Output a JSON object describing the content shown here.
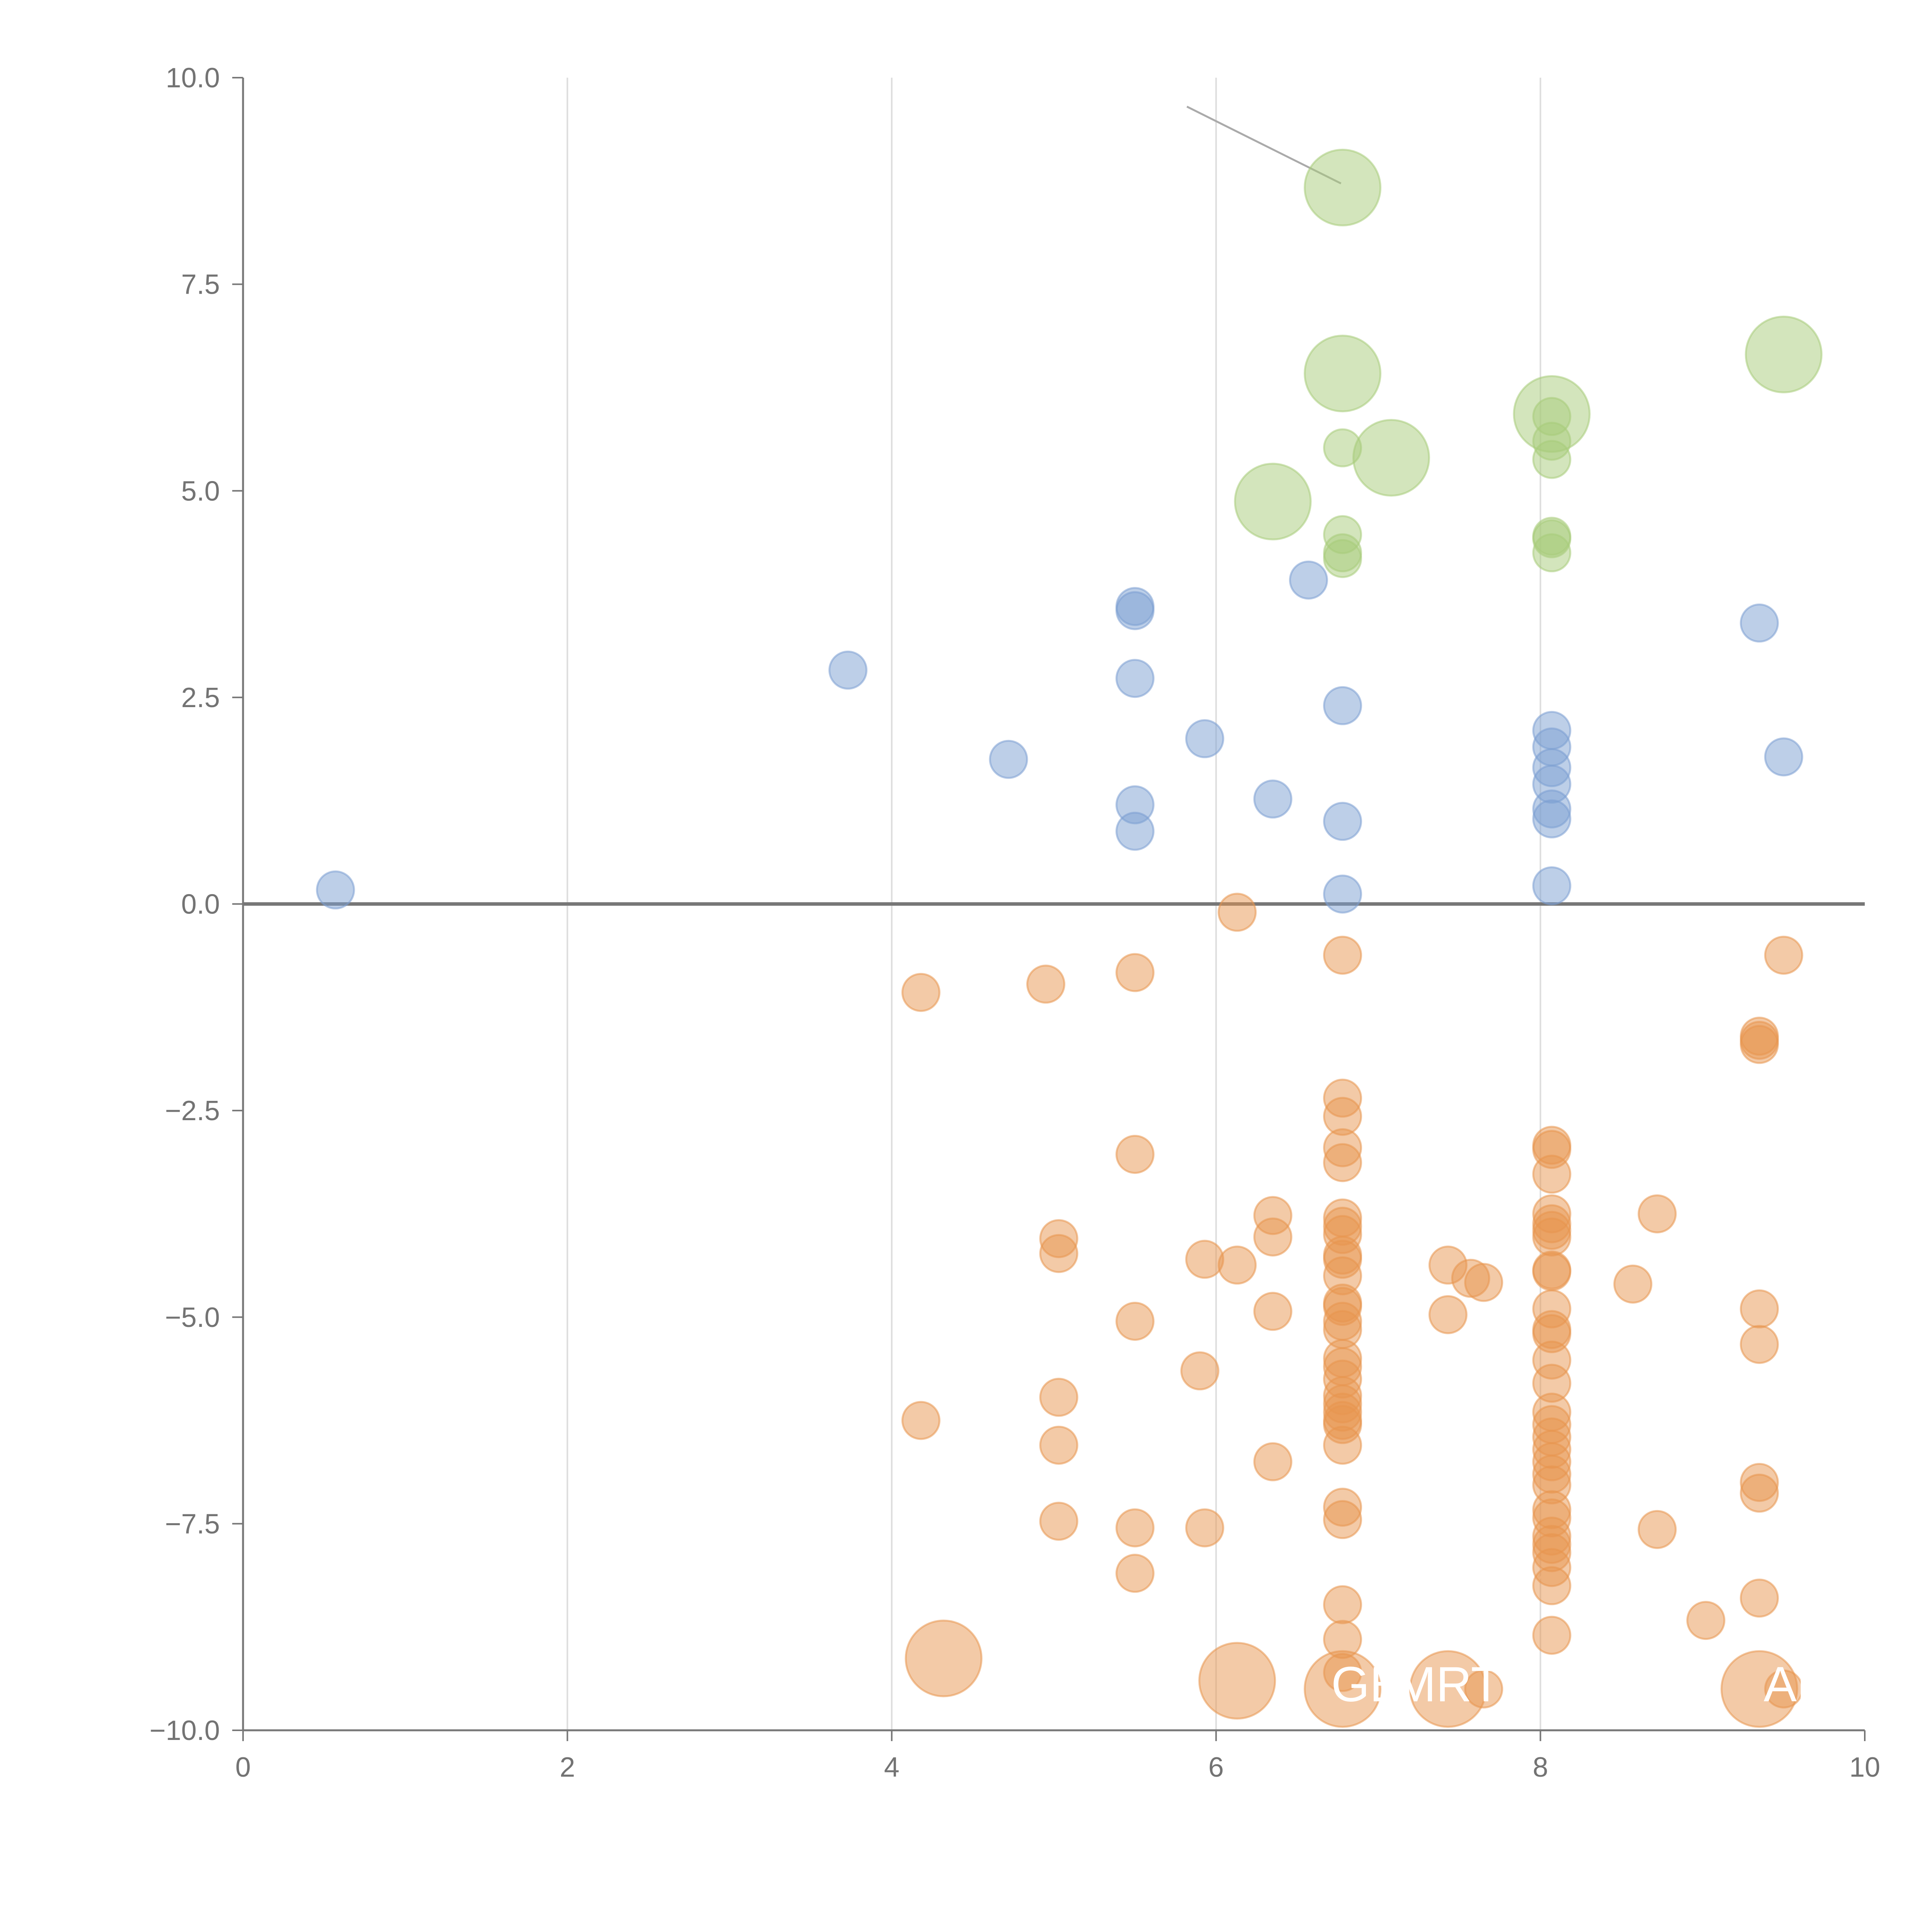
{
  "chart_data": {
    "type": "scatter",
    "title": "",
    "xlabel": "",
    "ylabel": "",
    "xlim": [
      0,
      10
    ],
    "ylim": [
      -10,
      10
    ],
    "grid": "vertical",
    "x_ticks": [
      "0",
      "2",
      "4",
      "6",
      "8",
      "10"
    ],
    "y_ticks": [
      "−10.0",
      "−7.5",
      "−5.0",
      "−2.5",
      "0.0",
      "2.5",
      "5.0",
      "7.5",
      "10.0"
    ],
    "baseline": 0,
    "colors": {
      "blue": "#7b9fd1",
      "orange": "#e8954f",
      "green": "#a8cc7a",
      "grid": "#dddddd",
      "axis": "#777777",
      "zero_line": "#777777",
      "leader": "#aaaaaa"
    },
    "series": [
      {
        "name": "blue",
        "points": [
          {
            "x": 0.57,
            "y": 0.17,
            "size": 1
          },
          {
            "x": 3.73,
            "y": 2.83,
            "size": 1
          },
          {
            "x": 4.72,
            "y": 1.75,
            "size": 1
          },
          {
            "x": 5.5,
            "y": 3.6,
            "size": 1
          },
          {
            "x": 5.5,
            "y": 3.55,
            "size": 1
          },
          {
            "x": 5.5,
            "y": 2.73,
            "size": 1
          },
          {
            "x": 5.5,
            "y": 1.2,
            "size": 1
          },
          {
            "x": 5.5,
            "y": 0.88,
            "size": 1
          },
          {
            "x": 5.93,
            "y": 2.0,
            "size": 1
          },
          {
            "x": 6.35,
            "y": 1.27,
            "size": 1
          },
          {
            "x": 6.57,
            "y": 3.92,
            "size": 1
          },
          {
            "x": 6.78,
            "y": 2.4,
            "size": 1
          },
          {
            "x": 6.78,
            "y": 1.0,
            "size": 1
          },
          {
            "x": 6.78,
            "y": 0.12,
            "size": 1
          },
          {
            "x": 8.07,
            "y": 2.1,
            "size": 1
          },
          {
            "x": 8.07,
            "y": 1.9,
            "size": 1
          },
          {
            "x": 8.07,
            "y": 1.65,
            "size": 1
          },
          {
            "x": 8.07,
            "y": 1.45,
            "size": 1
          },
          {
            "x": 8.07,
            "y": 1.15,
            "size": 1
          },
          {
            "x": 8.07,
            "y": 1.03,
            "size": 1
          },
          {
            "x": 8.07,
            "y": 0.22,
            "size": 1
          },
          {
            "x": 9.35,
            "y": 3.4,
            "size": 1
          },
          {
            "x": 9.5,
            "y": 1.78,
            "size": 1
          }
        ]
      },
      {
        "name": "green",
        "points": [
          {
            "x": 6.78,
            "y": 8.67,
            "size": 2
          },
          {
            "x": 6.78,
            "y": 6.42,
            "size": 2
          },
          {
            "x": 6.78,
            "y": 5.52,
            "size": 1
          },
          {
            "x": 7.08,
            "y": 5.4,
            "size": 2
          },
          {
            "x": 6.35,
            "y": 4.87,
            "size": 2
          },
          {
            "x": 6.78,
            "y": 4.47,
            "size": 1
          },
          {
            "x": 6.78,
            "y": 4.25,
            "size": 1
          },
          {
            "x": 6.78,
            "y": 4.18,
            "size": 1
          },
          {
            "x": 8.07,
            "y": 5.93,
            "size": 2
          },
          {
            "x": 8.07,
            "y": 5.9,
            "size": 1
          },
          {
            "x": 8.07,
            "y": 5.6,
            "size": 1
          },
          {
            "x": 8.07,
            "y": 5.38,
            "size": 1
          },
          {
            "x": 8.07,
            "y": 4.45,
            "size": 1
          },
          {
            "x": 8.07,
            "y": 4.42,
            "size": 1
          },
          {
            "x": 8.07,
            "y": 4.25,
            "size": 1
          },
          {
            "x": 9.5,
            "y": 6.65,
            "size": 2
          }
        ]
      },
      {
        "name": "orange",
        "points": [
          {
            "x": 4.18,
            "y": -1.07,
            "size": 1
          },
          {
            "x": 4.95,
            "y": -0.97,
            "size": 1
          },
          {
            "x": 5.5,
            "y": -0.83,
            "size": 1
          },
          {
            "x": 6.13,
            "y": -0.1,
            "size": 1
          },
          {
            "x": 6.78,
            "y": -0.62,
            "size": 1
          },
          {
            "x": 9.5,
            "y": -0.62,
            "size": 1
          },
          {
            "x": 9.35,
            "y": -1.65,
            "size": 1
          },
          {
            "x": 9.35,
            "y": -1.7,
            "size": 1
          },
          {
            "x": 9.35,
            "y": -1.6,
            "size": 1
          },
          {
            "x": 5.5,
            "y": -3.03,
            "size": 1
          },
          {
            "x": 5.03,
            "y": -4.05,
            "size": 1
          },
          {
            "x": 5.03,
            "y": -4.23,
            "size": 1
          },
          {
            "x": 5.93,
            "y": -4.3,
            "size": 1
          },
          {
            "x": 6.13,
            "y": -4.37,
            "size": 1
          },
          {
            "x": 6.35,
            "y": -3.77,
            "size": 1
          },
          {
            "x": 6.35,
            "y": -4.03,
            "size": 1
          },
          {
            "x": 6.35,
            "y": -4.93,
            "size": 1
          },
          {
            "x": 5.5,
            "y": -5.05,
            "size": 1
          },
          {
            "x": 5.9,
            "y": -5.65,
            "size": 1
          },
          {
            "x": 4.18,
            "y": -6.25,
            "size": 1
          },
          {
            "x": 5.03,
            "y": -5.97,
            "size": 1
          },
          {
            "x": 5.03,
            "y": -6.55,
            "size": 1
          },
          {
            "x": 6.35,
            "y": -6.75,
            "size": 1
          },
          {
            "x": 5.03,
            "y": -7.47,
            "size": 1
          },
          {
            "x": 5.5,
            "y": -7.55,
            "size": 1
          },
          {
            "x": 5.93,
            "y": -7.55,
            "size": 1
          },
          {
            "x": 5.5,
            "y": -8.1,
            "size": 1
          },
          {
            "x": 6.78,
            "y": -2.35,
            "size": 1
          },
          {
            "x": 6.78,
            "y": -2.57,
            "size": 1
          },
          {
            "x": 6.78,
            "y": -2.95,
            "size": 1
          },
          {
            "x": 6.78,
            "y": -3.13,
            "size": 1
          },
          {
            "x": 6.78,
            "y": -3.8,
            "size": 1
          },
          {
            "x": 6.78,
            "y": -3.9,
            "size": 1
          },
          {
            "x": 6.78,
            "y": -4.0,
            "size": 1
          },
          {
            "x": 6.78,
            "y": -4.25,
            "size": 1
          },
          {
            "x": 6.78,
            "y": -4.3,
            "size": 1
          },
          {
            "x": 6.78,
            "y": -4.5,
            "size": 1
          },
          {
            "x": 6.78,
            "y": -4.83,
            "size": 1
          },
          {
            "x": 6.78,
            "y": -4.87,
            "size": 1
          },
          {
            "x": 6.78,
            "y": -5.05,
            "size": 1
          },
          {
            "x": 6.78,
            "y": -5.15,
            "size": 1
          },
          {
            "x": 6.78,
            "y": -5.5,
            "size": 1
          },
          {
            "x": 6.78,
            "y": -5.6,
            "size": 1
          },
          {
            "x": 6.78,
            "y": -5.75,
            "size": 1
          },
          {
            "x": 6.78,
            "y": -5.95,
            "size": 1
          },
          {
            "x": 6.78,
            "y": -6.05,
            "size": 1
          },
          {
            "x": 6.78,
            "y": -6.15,
            "size": 1
          },
          {
            "x": 6.78,
            "y": -6.25,
            "size": 1
          },
          {
            "x": 6.78,
            "y": -6.3,
            "size": 1
          },
          {
            "x": 6.78,
            "y": -6.55,
            "size": 1
          },
          {
            "x": 6.78,
            "y": -7.3,
            "size": 1
          },
          {
            "x": 6.78,
            "y": -7.45,
            "size": 1
          },
          {
            "x": 6.78,
            "y": -8.48,
            "size": 1
          },
          {
            "x": 6.78,
            "y": -8.9,
            "size": 1
          },
          {
            "x": 6.78,
            "y": -9.3,
            "size": 1
          },
          {
            "x": 7.43,
            "y": -4.37,
            "size": 1
          },
          {
            "x": 7.57,
            "y": -4.53,
            "size": 1
          },
          {
            "x": 7.65,
            "y": -4.58,
            "size": 1
          },
          {
            "x": 7.43,
            "y": -4.97,
            "size": 1
          },
          {
            "x": 7.65,
            "y": -9.5,
            "size": 1
          },
          {
            "x": 8.07,
            "y": -2.92,
            "size": 1
          },
          {
            "x": 8.07,
            "y": -2.97,
            "size": 1
          },
          {
            "x": 8.07,
            "y": -3.27,
            "size": 1
          },
          {
            "x": 8.07,
            "y": -3.75,
            "size": 1
          },
          {
            "x": 8.07,
            "y": -3.87,
            "size": 1
          },
          {
            "x": 8.07,
            "y": -3.95,
            "size": 1
          },
          {
            "x": 8.07,
            "y": -4.03,
            "size": 1
          },
          {
            "x": 8.07,
            "y": -4.43,
            "size": 1
          },
          {
            "x": 8.07,
            "y": -4.45,
            "size": 1
          },
          {
            "x": 8.07,
            "y": -4.9,
            "size": 1
          },
          {
            "x": 8.07,
            "y": -5.15,
            "size": 1
          },
          {
            "x": 8.07,
            "y": -5.2,
            "size": 1
          },
          {
            "x": 8.07,
            "y": -5.52,
            "size": 1
          },
          {
            "x": 8.07,
            "y": -5.8,
            "size": 1
          },
          {
            "x": 8.07,
            "y": -6.15,
            "size": 1
          },
          {
            "x": 8.07,
            "y": -6.3,
            "size": 1
          },
          {
            "x": 8.07,
            "y": -6.45,
            "size": 1
          },
          {
            "x": 8.07,
            "y": -6.6,
            "size": 1
          },
          {
            "x": 8.07,
            "y": -6.75,
            "size": 1
          },
          {
            "x": 8.07,
            "y": -6.9,
            "size": 1
          },
          {
            "x": 8.07,
            "y": -7.03,
            "size": 1
          },
          {
            "x": 8.07,
            "y": -7.33,
            "size": 1
          },
          {
            "x": 8.07,
            "y": -7.43,
            "size": 1
          },
          {
            "x": 8.07,
            "y": -7.65,
            "size": 1
          },
          {
            "x": 8.07,
            "y": -7.75,
            "size": 1
          },
          {
            "x": 8.07,
            "y": -7.85,
            "size": 1
          },
          {
            "x": 8.07,
            "y": -8.03,
            "size": 1
          },
          {
            "x": 8.07,
            "y": -8.25,
            "size": 1
          },
          {
            "x": 8.07,
            "y": -8.85,
            "size": 1
          },
          {
            "x": 8.57,
            "y": -4.6,
            "size": 1
          },
          {
            "x": 8.72,
            "y": -3.75,
            "size": 1
          },
          {
            "x": 8.72,
            "y": -7.57,
            "size": 1
          },
          {
            "x": 9.02,
            "y": -8.67,
            "size": 1
          },
          {
            "x": 9.35,
            "y": -4.9,
            "size": 1
          },
          {
            "x": 9.35,
            "y": -5.33,
            "size": 1
          },
          {
            "x": 9.35,
            "y": -7.0,
            "size": 1
          },
          {
            "x": 9.35,
            "y": -7.13,
            "size": 1
          },
          {
            "x": 9.35,
            "y": -8.4,
            "size": 1
          },
          {
            "x": 9.5,
            "y": -9.5,
            "size": 1
          },
          {
            "x": 4.32,
            "y": -9.13,
            "size": 2
          },
          {
            "x": 6.13,
            "y": -9.4,
            "size": 2
          },
          {
            "x": 6.78,
            "y": -9.5,
            "size": 2
          },
          {
            "x": 7.43,
            "y": -9.5,
            "size": 2
          },
          {
            "x": 9.35,
            "y": -9.5,
            "size": 2
          }
        ]
      }
    ],
    "annotations": [
      {
        "text": "GE",
        "x": 6.93,
        "y": -9.65,
        "anchor_x": 6.15,
        "anchor_y": -9.38
      },
      {
        "text": "MRT",
        "x": 7.43,
        "y": -9.65,
        "anchor_x": 7.6,
        "anchor_y": -9.25
      },
      {
        "text": "AP",
        "x": 9.58,
        "y": -9.65,
        "anchor_x": 9.42,
        "anchor_y": -9.5
      }
    ],
    "leader_lines": [
      {
        "x1": 5.82,
        "y1": 9.65,
        "x2": 6.77,
        "y2": 8.72,
        "color": "#aaaaaa"
      },
      {
        "x1": 6.85,
        "y1": 6.5,
        "x2": 6.98,
        "y2": 6.65,
        "color": "#ffffff"
      },
      {
        "x1": 8.13,
        "y1": 5.97,
        "x2": 8.3,
        "y2": 6.05,
        "color": "#ffffff"
      },
      {
        "x1": 7.12,
        "y1": 5.35,
        "x2": 7.07,
        "y2": 5.52,
        "color": "#ffffff"
      },
      {
        "x1": 6.35,
        "y1": 4.95,
        "x2": 6.22,
        "y2": 5.1,
        "color": "#ffffff"
      },
      {
        "x1": 9.48,
        "y1": 6.72,
        "x2": 9.43,
        "y2": 6.93,
        "color": "#ffffff"
      },
      {
        "x1": 7.95,
        "y1": -8.25,
        "x2": 8.18,
        "y2": -7.8,
        "color": "#ffffff"
      }
    ]
  }
}
